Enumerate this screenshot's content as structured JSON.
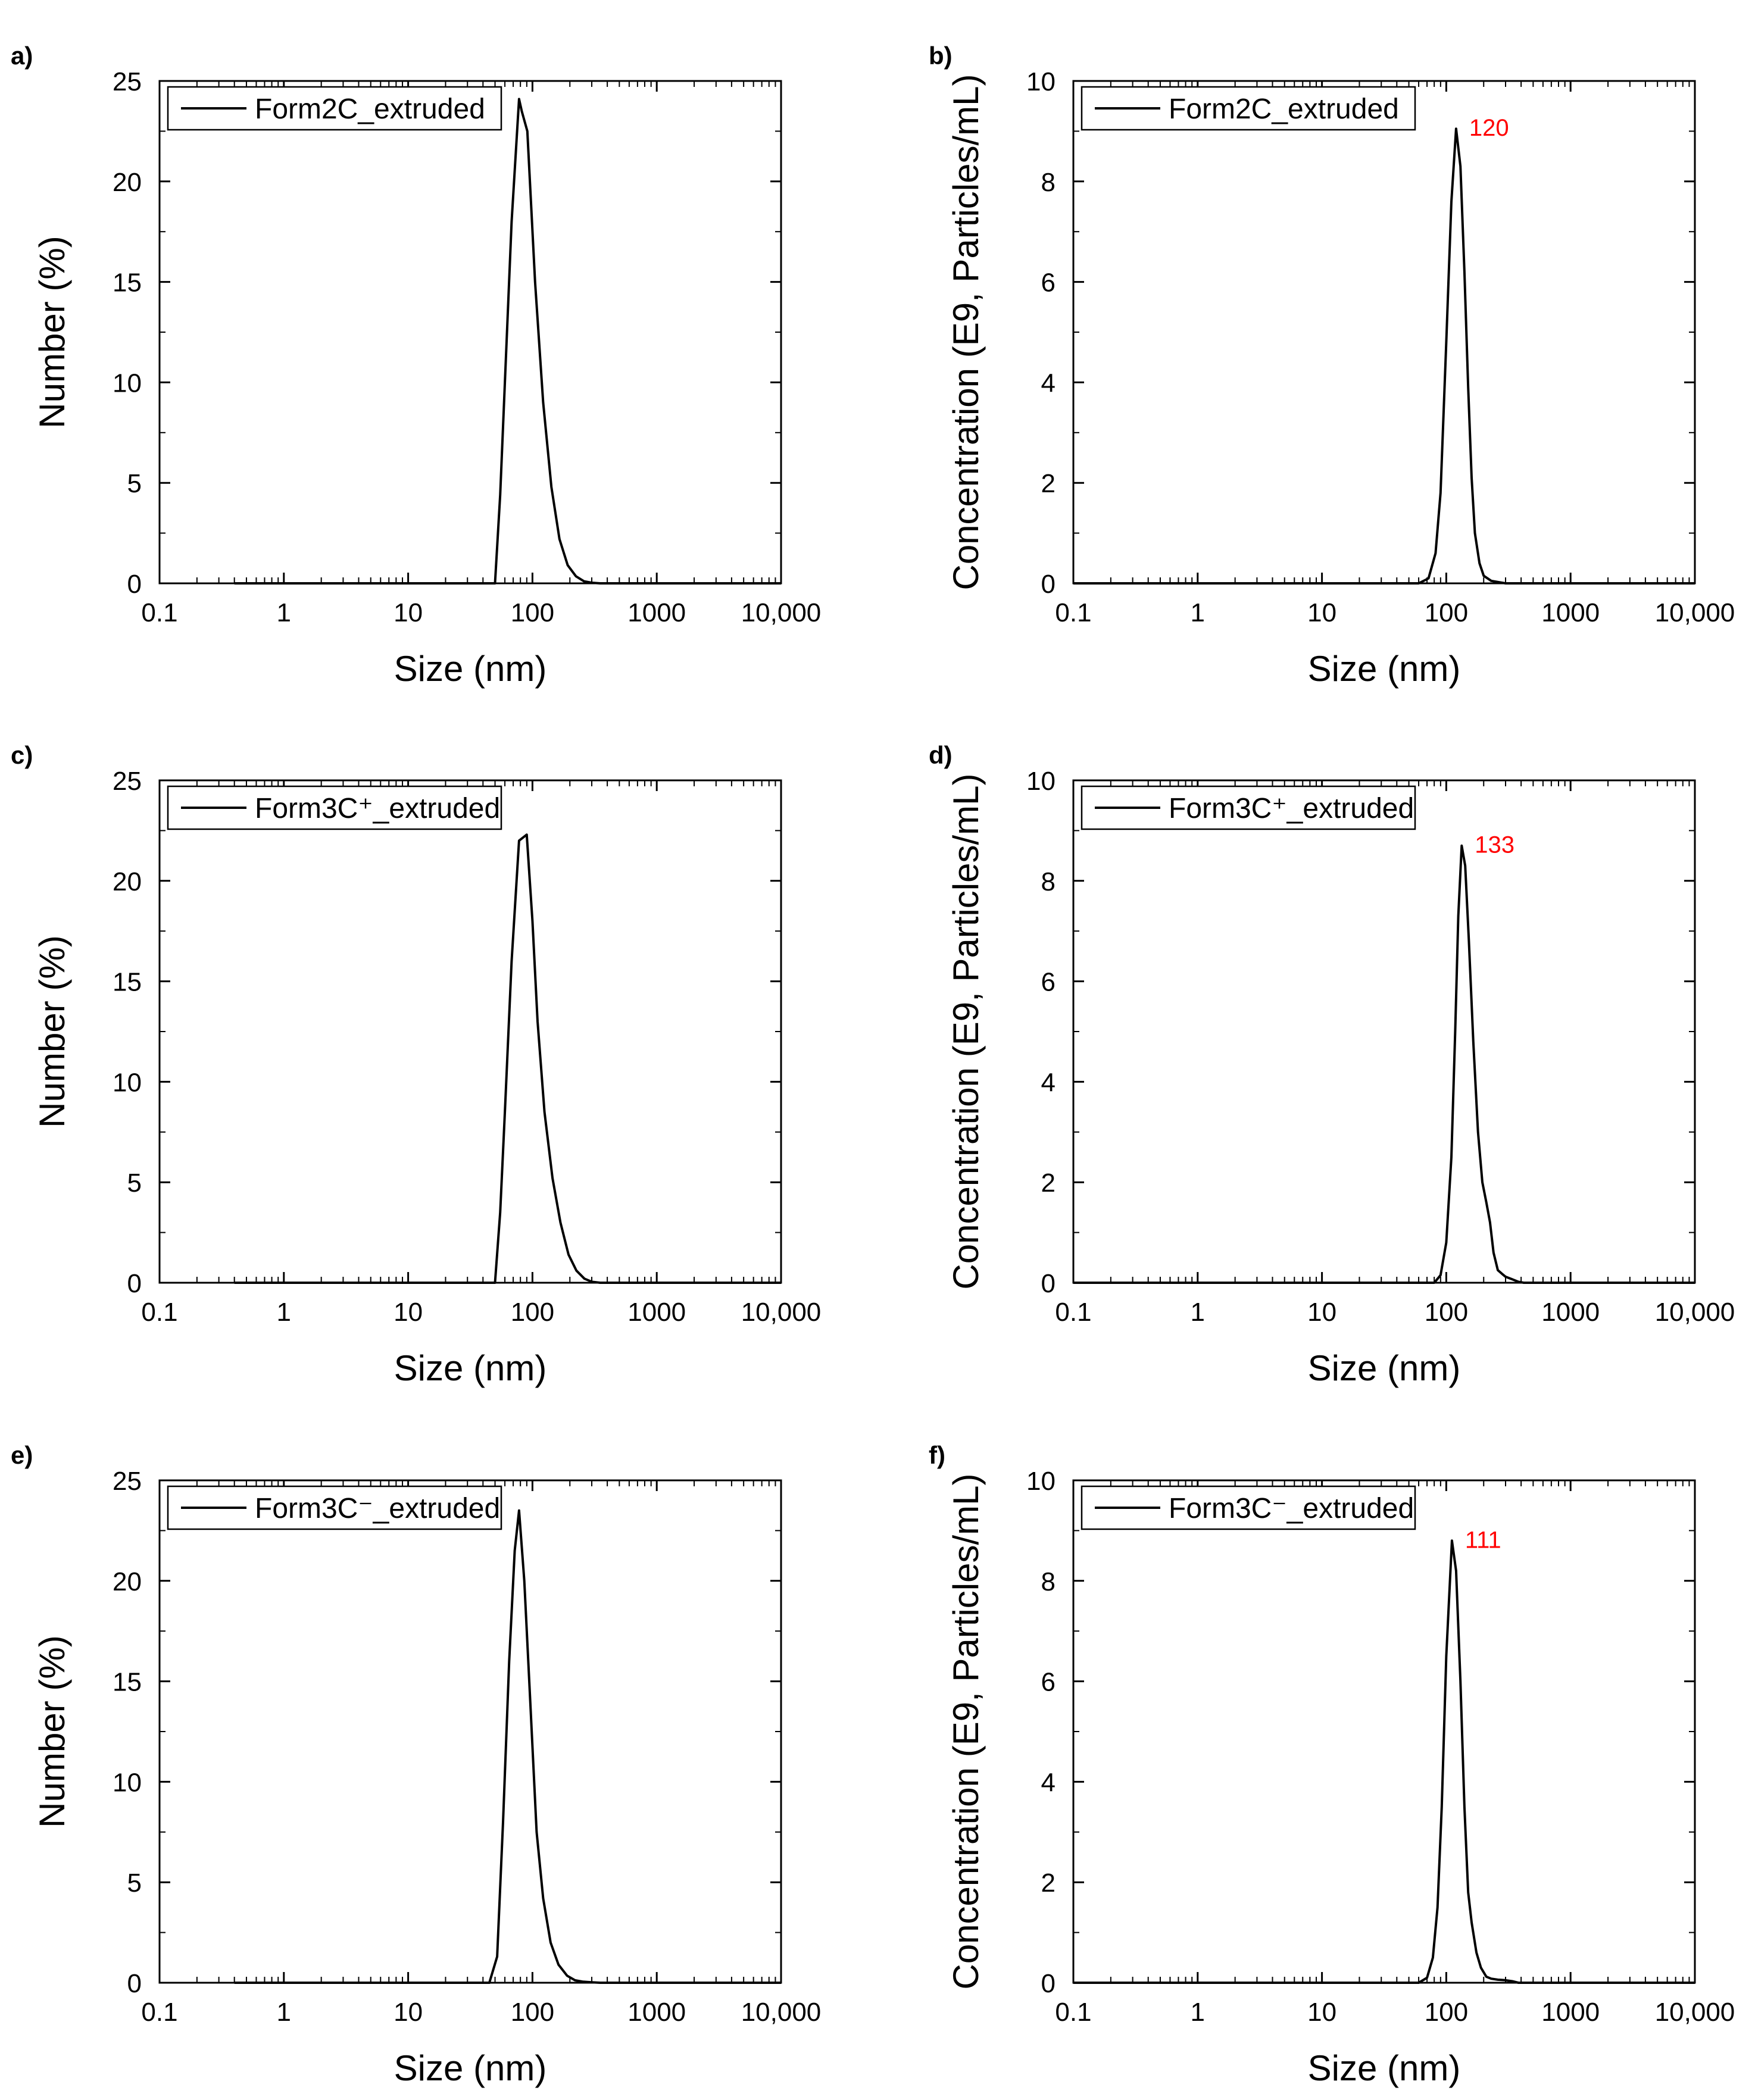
{
  "figure": {
    "panels": [
      "a)",
      "b)",
      "c)",
      "d)",
      "e)",
      "f)"
    ]
  },
  "chart_data": [
    {
      "panel": "a)",
      "type": "line",
      "xscale": "log",
      "xlim": [
        0.1,
        10000
      ],
      "ylim": [
        0,
        25
      ],
      "xticks": [
        0.1,
        1,
        10,
        100,
        1000,
        10000
      ],
      "xtick_labels": [
        "0.1",
        "1",
        "10",
        "100",
        "1000",
        "10,000"
      ],
      "yticks": [
        0,
        5,
        10,
        15,
        20,
        25
      ],
      "ytick_labels": [
        "0",
        "5",
        "10",
        "15",
        "20",
        "25"
      ],
      "xlabel": "Size (nm)",
      "ylabel": "Number (%)",
      "legend_location": "top-left",
      "series": [
        {
          "name": "Form2C_extruded",
          "x": [
            0.4,
            50,
            55,
            60,
            68,
            78,
            82,
            91,
            105,
            122,
            142,
            165,
            192,
            224,
            260,
            300,
            350,
            1000,
            10000
          ],
          "y": [
            0,
            0,
            4.4,
            10,
            18,
            24.1,
            23.5,
            22.5,
            15,
            9,
            4.8,
            2.2,
            0.9,
            0.35,
            0.1,
            0.03,
            0,
            0,
            0
          ]
        }
      ],
      "annotations": []
    },
    {
      "panel": "b)",
      "type": "line",
      "xscale": "log",
      "xlim": [
        0.1,
        10000
      ],
      "ylim": [
        0,
        10
      ],
      "xticks": [
        0.1,
        1,
        10,
        100,
        1000,
        10000
      ],
      "xtick_labels": [
        "0.1",
        "1",
        "10",
        "100",
        "1000",
        "10,000"
      ],
      "yticks": [
        0,
        2,
        4,
        6,
        8,
        10
      ],
      "ytick_labels": [
        "0",
        "2",
        "4",
        "6",
        "8",
        "10"
      ],
      "xlabel": "Size (nm)",
      "ylabel": "Concentration (E9, Particles/mL)",
      "legend_location": "top-left",
      "series": [
        {
          "name": "Form2C_extruded",
          "x": [
            0.1,
            60,
            72,
            82,
            90,
            100,
            110,
            120,
            130,
            140,
            150,
            160,
            170,
            185,
            200,
            230,
            300,
            10000
          ],
          "y": [
            0,
            0,
            0.1,
            0.6,
            1.8,
            4.8,
            7.6,
            9.05,
            8.3,
            6.2,
            3.9,
            2.1,
            1.0,
            0.4,
            0.15,
            0.05,
            0,
            0
          ]
        }
      ],
      "annotations": [
        {
          "text": "120",
          "x": 120,
          "y": 9.05,
          "color": "#ff0000"
        }
      ]
    },
    {
      "panel": "c)",
      "type": "line",
      "xscale": "log",
      "xlim": [
        0.1,
        10000
      ],
      "ylim": [
        0,
        25
      ],
      "xticks": [
        0.1,
        1,
        10,
        100,
        1000,
        10000
      ],
      "xtick_labels": [
        "0.1",
        "1",
        "10",
        "100",
        "1000",
        "10,000"
      ],
      "yticks": [
        0,
        5,
        10,
        15,
        20,
        25
      ],
      "ytick_labels": [
        "0",
        "5",
        "10",
        "15",
        "20",
        "25"
      ],
      "xlabel": "Size (nm)",
      "ylabel": "Number (%)",
      "legend_location": "top-left",
      "series": [
        {
          "name": "Form3C⁺_extruded",
          "x": [
            0.4,
            50,
            55,
            60,
            68,
            78,
            90,
            100,
            110,
            125,
            145,
            168,
            195,
            226,
            262,
            300,
            350,
            1000,
            10000
          ],
          "y": [
            0,
            0,
            3.5,
            8.5,
            16,
            22,
            22.3,
            18,
            13,
            8.5,
            5.2,
            3.0,
            1.4,
            0.6,
            0.2,
            0.05,
            0,
            0,
            0
          ]
        }
      ],
      "annotations": []
    },
    {
      "panel": "d)",
      "type": "line",
      "xscale": "log",
      "xlim": [
        0.1,
        10000
      ],
      "ylim": [
        0,
        10
      ],
      "xticks": [
        0.1,
        1,
        10,
        100,
        1000,
        10000
      ],
      "xtick_labels": [
        "0.1",
        "1",
        "10",
        "100",
        "1000",
        "10,000"
      ],
      "yticks": [
        0,
        2,
        4,
        6,
        8,
        10
      ],
      "ytick_labels": [
        "0",
        "2",
        "4",
        "6",
        "8",
        "10"
      ],
      "xlabel": "Size (nm)",
      "ylabel": "Concentration (E9, Particles/mL)",
      "legend_location": "top-left",
      "series": [
        {
          "name": "Form3C⁺_extruded",
          "x": [
            0.1,
            80,
            90,
            100,
            110,
            118,
            125,
            133,
            142,
            152,
            165,
            180,
            195,
            210,
            225,
            240,
            260,
            280,
            300,
            330,
            380,
            420,
            10000
          ],
          "y": [
            0,
            0,
            0.15,
            0.8,
            2.5,
            5.0,
            7.3,
            8.7,
            8.3,
            6.8,
            4.8,
            3.0,
            2.0,
            1.6,
            1.2,
            0.6,
            0.25,
            0.18,
            0.12,
            0.08,
            0.02,
            0,
            0
          ]
        }
      ],
      "annotations": [
        {
          "text": "133",
          "x": 133,
          "y": 8.7,
          "color": "#ff0000"
        }
      ]
    },
    {
      "panel": "e)",
      "type": "line",
      "xscale": "log",
      "xlim": [
        0.1,
        10000
      ],
      "ylim": [
        0,
        25
      ],
      "xticks": [
        0.1,
        1,
        10,
        100,
        1000,
        10000
      ],
      "xtick_labels": [
        "0.1",
        "1",
        "10",
        "100",
        "1000",
        "10,000"
      ],
      "yticks": [
        0,
        5,
        10,
        15,
        20,
        25
      ],
      "ytick_labels": [
        "0",
        "5",
        "10",
        "15",
        "20",
        "25"
      ],
      "xlabel": "Size (nm)",
      "ylabel": "Number (%)",
      "legend_location": "top-left",
      "series": [
        {
          "name": "Form3C⁻_extruded",
          "x": [
            0.4,
            45,
            52,
            58,
            65,
            72,
            78,
            86,
            96,
            108,
            122,
            140,
            162,
            190,
            220,
            256,
            300,
            350,
            1000,
            10000
          ],
          "y": [
            0,
            0,
            1.3,
            8,
            16,
            21.5,
            23.5,
            20,
            14,
            7.5,
            4.2,
            2.0,
            0.9,
            0.35,
            0.12,
            0.05,
            0.02,
            0,
            0,
            0
          ]
        }
      ],
      "annotations": []
    },
    {
      "panel": "f)",
      "type": "line",
      "xscale": "log",
      "xlim": [
        0.1,
        10000
      ],
      "ylim": [
        0,
        10
      ],
      "xticks": [
        0.1,
        1,
        10,
        100,
        1000,
        10000
      ],
      "xtick_labels": [
        "0.1",
        "1",
        "10",
        "100",
        "1000",
        "10,000"
      ],
      "yticks": [
        0,
        2,
        4,
        6,
        8,
        10
      ],
      "ytick_labels": [
        "0",
        "2",
        "4",
        "6",
        "8",
        "10"
      ],
      "xlabel": "Size (nm)",
      "ylabel": "Concentration (E9, Particles/mL)",
      "legend_location": "top-left",
      "series": [
        {
          "name": "Form3C⁻_extruded",
          "x": [
            0.1,
            60,
            70,
            78,
            85,
            92,
            100,
            111,
            120,
            130,
            140,
            150,
            160,
            175,
            190,
            210,
            230,
            260,
            300,
            340,
            380,
            10000
          ],
          "y": [
            0,
            0,
            0.1,
            0.5,
            1.5,
            3.5,
            6.5,
            8.8,
            8.2,
            6.0,
            3.5,
            1.8,
            1.2,
            0.6,
            0.3,
            0.12,
            0.08,
            0.06,
            0.05,
            0.03,
            0,
            0
          ]
        }
      ],
      "annotations": [
        {
          "text": "111",
          "x": 111,
          "y": 8.8,
          "color": "#ff0000"
        }
      ]
    }
  ]
}
